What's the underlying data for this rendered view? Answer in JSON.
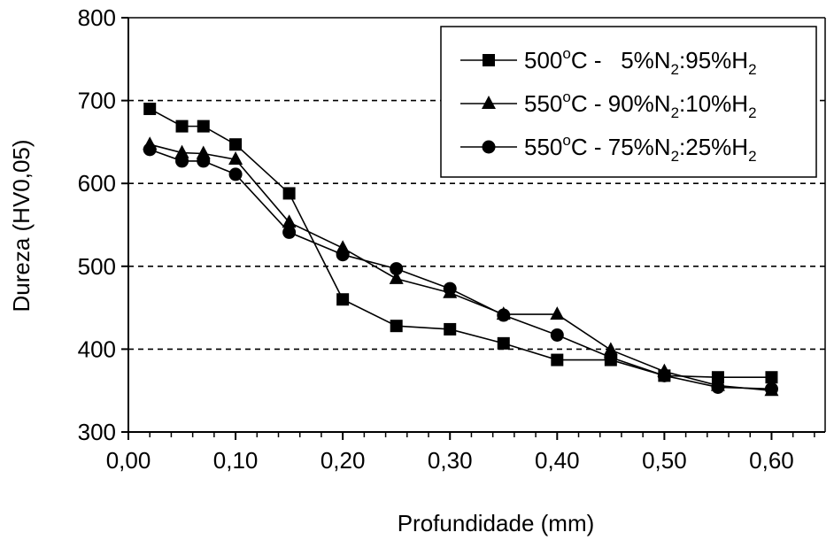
{
  "chart_data": {
    "type": "line",
    "xlabel": "Profundidade (mm)",
    "ylabel": "Dureza (HV0,05)",
    "xlim": [
      0,
      0.65
    ],
    "ylim": [
      300,
      800
    ],
    "xticks": [
      "0,00",
      "0,10",
      "0,20",
      "0,30",
      "0,40",
      "0,50",
      "0,60"
    ],
    "xtick_values": [
      0,
      0.1,
      0.2,
      0.3,
      0.4,
      0.5,
      0.6
    ],
    "yticks": [
      "300",
      "400",
      "500",
      "600",
      "700",
      "800"
    ],
    "ytick_values": [
      300,
      400,
      500,
      600,
      700,
      800
    ],
    "grid": "horizontal dashed at 400, 500, 600, 700",
    "legend_position": "top-right",
    "series": [
      {
        "name": "500ºC - 5%N2:95%H2",
        "legend_parts": [
          "500",
          "o",
          "C -   5%N",
          "2",
          ":95%H",
          "2"
        ],
        "marker": "square",
        "x": [
          0.02,
          0.05,
          0.07,
          0.1,
          0.15,
          0.2,
          0.25,
          0.3,
          0.35,
          0.4,
          0.45,
          0.5,
          0.55,
          0.6
        ],
        "y": [
          690,
          669,
          669,
          647,
          588,
          460,
          428,
          424,
          407,
          387,
          387,
          368,
          366,
          366
        ]
      },
      {
        "name": "550ºC - 90%N2:10%H2",
        "legend_parts": [
          "550",
          "o",
          "C - 90%N",
          "2",
          ":10%H",
          "2"
        ],
        "marker": "triangle",
        "x": [
          0.02,
          0.05,
          0.07,
          0.1,
          0.15,
          0.2,
          0.25,
          0.3,
          0.35,
          0.4,
          0.45,
          0.5,
          0.55,
          0.6
        ],
        "y": [
          647,
          637,
          636,
          629,
          553,
          522,
          485,
          468,
          442,
          442,
          399,
          373,
          356,
          350
        ]
      },
      {
        "name": "550ºC - 75%N2:25%H2",
        "legend_parts": [
          "550",
          "o",
          "C - 75%N",
          "2",
          ":25%H",
          "2"
        ],
        "marker": "circle",
        "x": [
          0.02,
          0.05,
          0.07,
          0.1,
          0.15,
          0.2,
          0.25,
          0.3,
          0.35,
          0.4,
          0.45,
          0.5,
          0.55,
          0.6
        ],
        "y": [
          641,
          627,
          627,
          611,
          541,
          514,
          497,
          473,
          441,
          417,
          390,
          368,
          354,
          352
        ]
      }
    ]
  }
}
